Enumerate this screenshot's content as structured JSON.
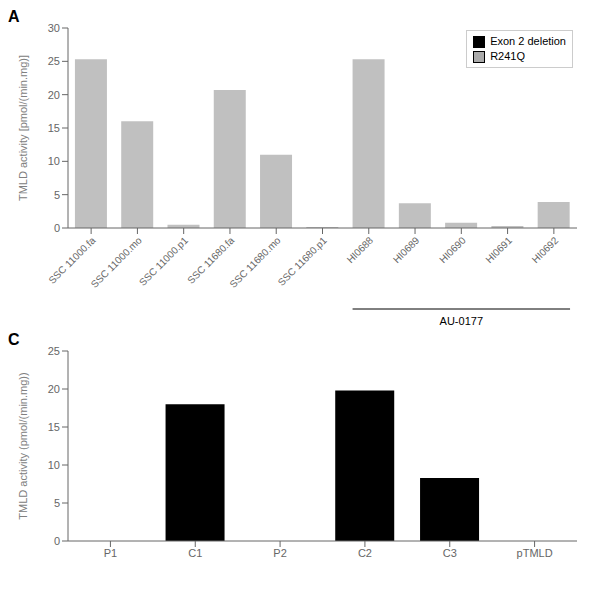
{
  "chart_data": [
    {
      "type": "bar",
      "title": "A",
      "categories": [
        "SSC 11000.fa",
        "SSC 11000.mo",
        "SSC 11000.p1",
        "SSC 11680.fa",
        "SSC 11680.mo",
        "SSC 11680.p1",
        "HI0688",
        "HI0689",
        "HI0690",
        "HI0691",
        "HI0692"
      ],
      "values": [
        25.3,
        16.0,
        0.5,
        20.7,
        11.0,
        0.15,
        25.3,
        3.7,
        0.8,
        0.3,
        3.9
      ],
      "color": "#c0c0c0",
      "ylabel": "TMLD activity [pmol/(min.mg)]",
      "ylim": [
        0,
        30
      ],
      "yticks": [
        0,
        5,
        10,
        15,
        20,
        25,
        30
      ],
      "grid": false,
      "legend": "upper right",
      "annotations": [
        {
          "text": "AU-0177",
          "from": "HI0688",
          "to": "HI0692"
        },
        {
          "text": "Exon 2 deletion",
          "color": "#000000"
        },
        {
          "text": "R241Q",
          "color": "#aaaaaa"
        }
      ]
    },
    {
      "type": "bar",
      "title": "C",
      "categories": [
        "P1",
        "C1",
        "P2",
        "C2",
        "C3",
        "pTMLD"
      ],
      "values": [
        0,
        18.0,
        0,
        19.8,
        8.3,
        0
      ],
      "color": "#000000",
      "ylabel": "TMLD activity (pmol/(min.mg))",
      "ylim": [
        0,
        25
      ],
      "yticks": [
        0,
        5,
        10,
        15,
        20,
        25
      ],
      "grid": false
    }
  ]
}
